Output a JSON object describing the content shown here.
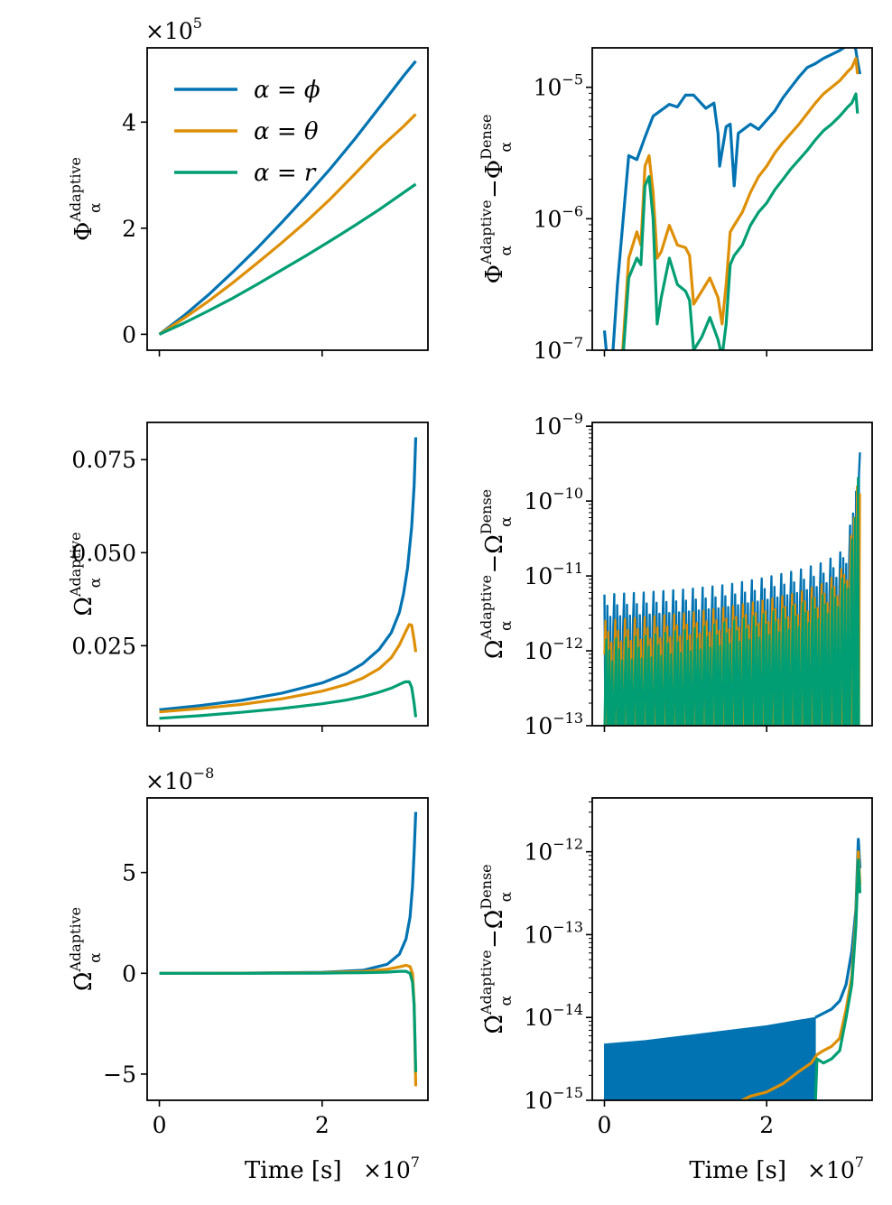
{
  "colors": {
    "phi": "#0173b2",
    "theta": "#de8f05",
    "r": "#029e73",
    "axis": "#000000"
  },
  "chart_data": [
    {
      "id": "phase",
      "type": "line",
      "ylabel": {
        "base": "Φ",
        "sup": "Adaptive",
        "sub": "α"
      },
      "xlim": [
        -0.15,
        3.3
      ],
      "ylim": [
        -0.3,
        5.4
      ],
      "y_scale_factor": "×10",
      "y_scale_exp": "5",
      "yticks": [
        {
          "v": 0,
          "label": "0"
        },
        {
          "v": 2,
          "label": "2"
        },
        {
          "v": 4,
          "label": "4"
        }
      ],
      "xticks": [
        0,
        2
      ],
      "legend": {
        "placement": "top-left",
        "entries": [
          "α = ϕ",
          "α = θ",
          "α = r"
        ]
      },
      "series": [
        {
          "name": "α = ϕ",
          "color_key": "phi",
          "x": [
            0,
            0.3,
            0.6,
            0.9,
            1.2,
            1.5,
            1.8,
            2.1,
            2.4,
            2.7,
            3.0,
            3.15
          ],
          "y": [
            0,
            0.35,
            0.74,
            1.17,
            1.62,
            2.1,
            2.6,
            3.12,
            3.68,
            4.27,
            4.87,
            5.15
          ]
        },
        {
          "name": "α = θ",
          "color_key": "theta",
          "x": [
            0,
            0.3,
            0.6,
            0.9,
            1.2,
            1.5,
            1.8,
            2.1,
            2.4,
            2.7,
            3.0,
            3.15
          ],
          "y": [
            0,
            0.3,
            0.62,
            0.97,
            1.34,
            1.72,
            2.12,
            2.55,
            3.02,
            3.5,
            3.92,
            4.15
          ]
        },
        {
          "name": "α = r",
          "color_key": "r",
          "x": [
            0,
            0.3,
            0.6,
            0.9,
            1.2,
            1.5,
            1.8,
            2.1,
            2.4,
            2.7,
            3.0,
            3.15
          ],
          "y": [
            0,
            0.21,
            0.44,
            0.68,
            0.94,
            1.21,
            1.48,
            1.76,
            2.05,
            2.35,
            2.67,
            2.83
          ]
        }
      ]
    },
    {
      "id": "phase-diff",
      "type": "line",
      "log_y": true,
      "ylabel": {
        "base1": "Φ",
        "sup1": "Adaptive",
        "sub1": "α",
        "op": "−",
        "base2": "Φ",
        "sup2": "Dense",
        "sub2": "α"
      },
      "xlim": [
        -0.15,
        3.3
      ],
      "ylim_log10": [
        -7,
        -4.7
      ],
      "yticks": [
        {
          "e": -7,
          "label": "10",
          "exp": "−7"
        },
        {
          "e": -6,
          "label": "10",
          "exp": "−6"
        },
        {
          "e": -5,
          "label": "10",
          "exp": "−5"
        }
      ],
      "xticks": [
        0,
        2
      ],
      "series": [
        {
          "name": "α = ϕ",
          "color_key": "phi",
          "x": [
            0,
            0.03,
            0.1,
            0.16,
            0.3,
            0.4,
            0.5,
            0.6,
            0.8,
            0.9,
            1.0,
            1.1,
            1.25,
            1.35,
            1.4,
            1.42,
            1.5,
            1.55,
            1.6,
            1.65,
            1.8,
            1.9,
            2.0,
            2.1,
            2.2,
            2.3,
            2.4,
            2.5,
            2.6,
            2.7,
            2.8,
            2.9,
            3.0,
            3.05,
            3.1,
            3.12,
            3.15
          ],
          "y": [
            -6.85,
            -7.05,
            -7.05,
            -6.5,
            -5.52,
            -5.55,
            -5.38,
            -5.22,
            -5.13,
            -5.15,
            -5.06,
            -5.06,
            -5.16,
            -5.12,
            -5.35,
            -5.6,
            -5.3,
            -5.28,
            -5.75,
            -5.35,
            -5.28,
            -5.32,
            -5.25,
            -5.18,
            -5.08,
            -5.0,
            -4.92,
            -4.85,
            -4.82,
            -4.78,
            -4.75,
            -4.72,
            -4.68,
            -4.6,
            -4.72,
            -4.8,
            -4.9
          ]
        },
        {
          "name": "α = θ",
          "color_key": "theta",
          "x": [
            0.22,
            0.3,
            0.4,
            0.45,
            0.5,
            0.55,
            0.6,
            0.65,
            0.7,
            0.8,
            0.9,
            1.0,
            1.05,
            1.1,
            1.2,
            1.3,
            1.4,
            1.45,
            1.5,
            1.55,
            1.6,
            1.7,
            1.8,
            1.9,
            2.0,
            2.1,
            2.2,
            2.3,
            2.4,
            2.5,
            2.6,
            2.7,
            2.8,
            2.9,
            3.0,
            3.05,
            3.1,
            3.12
          ],
          "y": [
            -7.05,
            -6.3,
            -6.1,
            -6.2,
            -5.6,
            -5.52,
            -5.8,
            -6.3,
            -6.25,
            -6.05,
            -6.2,
            -6.22,
            -6.28,
            -6.65,
            -6.55,
            -6.45,
            -6.6,
            -6.8,
            -6.5,
            -6.1,
            -6.05,
            -5.95,
            -5.8,
            -5.68,
            -5.6,
            -5.5,
            -5.42,
            -5.35,
            -5.28,
            -5.2,
            -5.12,
            -5.05,
            -5.0,
            -4.95,
            -4.88,
            -4.85,
            -4.78,
            -4.9
          ]
        },
        {
          "name": "α = r",
          "color_key": "r",
          "x": [
            0.23,
            0.3,
            0.4,
            0.45,
            0.5,
            0.55,
            0.6,
            0.65,
            0.7,
            0.8,
            0.9,
            1.0,
            1.05,
            1.1,
            1.2,
            1.3,
            1.4,
            1.45,
            1.5,
            1.55,
            1.6,
            1.7,
            1.8,
            1.9,
            2.0,
            2.1,
            2.2,
            2.3,
            2.4,
            2.5,
            2.6,
            2.7,
            2.8,
            2.9,
            3.0,
            3.05,
            3.1,
            3.12
          ],
          "y": [
            -7.05,
            -6.45,
            -6.3,
            -6.35,
            -5.75,
            -5.68,
            -6.0,
            -6.8,
            -6.6,
            -6.3,
            -6.5,
            -6.55,
            -6.62,
            -7.0,
            -6.9,
            -6.75,
            -6.92,
            -7.05,
            -6.8,
            -6.35,
            -6.28,
            -6.2,
            -6.05,
            -5.95,
            -5.88,
            -5.78,
            -5.7,
            -5.62,
            -5.55,
            -5.48,
            -5.4,
            -5.33,
            -5.28,
            -5.22,
            -5.15,
            -5.12,
            -5.05,
            -5.2
          ]
        }
      ]
    },
    {
      "id": "frequency",
      "type": "line",
      "ylabel": {
        "base": "Ω",
        "sup": "Adaptive",
        "sub": "α"
      },
      "xlim": [
        -0.15,
        3.3
      ],
      "ylim": [
        0.0035,
        0.085
      ],
      "yticks": [
        {
          "v": 0.025,
          "label": "0.025"
        },
        {
          "v": 0.05,
          "label": "0.050"
        },
        {
          "v": 0.075,
          "label": "0.075"
        }
      ],
      "xticks": [
        0,
        2
      ],
      "series": [
        {
          "name": "α = ϕ",
          "color_key": "phi",
          "x": [
            0,
            0.5,
            1.0,
            1.5,
            2.0,
            2.3,
            2.5,
            2.7,
            2.85,
            2.95,
            3.0,
            3.05,
            3.1,
            3.13,
            3.15
          ],
          "y": [
            0.0078,
            0.0089,
            0.0103,
            0.0122,
            0.015,
            0.0176,
            0.0202,
            0.024,
            0.0285,
            0.034,
            0.039,
            0.046,
            0.057,
            0.068,
            0.081
          ]
        },
        {
          "name": "α = θ",
          "color_key": "theta",
          "x": [
            0,
            0.5,
            1.0,
            1.5,
            2.0,
            2.3,
            2.5,
            2.7,
            2.85,
            2.95,
            3.02,
            3.07,
            3.1,
            3.13,
            3.15
          ],
          "y": [
            0.0072,
            0.0081,
            0.0092,
            0.0107,
            0.0128,
            0.0146,
            0.0163,
            0.0188,
            0.0218,
            0.0252,
            0.0285,
            0.0307,
            0.0305,
            0.0265,
            0.0233
          ]
        },
        {
          "name": "α = r",
          "color_key": "r",
          "x": [
            0,
            0.5,
            1.0,
            1.5,
            2.0,
            2.3,
            2.5,
            2.7,
            2.85,
            2.95,
            3.02,
            3.07,
            3.1,
            3.13,
            3.15
          ],
          "y": [
            0.0055,
            0.0062,
            0.0071,
            0.0081,
            0.0094,
            0.0104,
            0.0113,
            0.0125,
            0.0136,
            0.0146,
            0.0153,
            0.0153,
            0.0138,
            0.0095,
            0.0058
          ]
        }
      ]
    },
    {
      "id": "frequency-diff",
      "type": "line",
      "log_y": true,
      "ylabel": {
        "base1": "Ω",
        "sup1": "Adaptive",
        "sub1": "α",
        "op": "−",
        "base2": "Ω",
        "sup2": "Dense",
        "sub2": "α"
      },
      "xlim": [
        -0.15,
        3.3
      ],
      "ylim_log10": [
        -13,
        -8.95
      ],
      "yticks": [
        {
          "e": -13,
          "label": "10",
          "exp": "−13"
        },
        {
          "e": -12,
          "label": "10",
          "exp": "−12"
        },
        {
          "e": -11,
          "label": "10",
          "exp": "−11"
        },
        {
          "e": -10,
          "label": "10",
          "exp": "−10"
        },
        {
          "e": -9,
          "label": "10",
          "exp": "−9"
        }
      ],
      "xticks": [
        0,
        2
      ],
      "series": [
        {
          "name": "α = ϕ",
          "color_key": "phi",
          "envelope_x": [
            0,
            0.5,
            1.0,
            1.5,
            2.0,
            2.4,
            2.7,
            2.9,
            3.0,
            3.05,
            3.1,
            3.13,
            3.15
          ],
          "envelope_y": [
            -11.25,
            -11.22,
            -11.18,
            -11.12,
            -11.02,
            -10.92,
            -10.82,
            -10.7,
            -10.5,
            -10.2,
            -9.6,
            -9.1,
            -9.35
          ]
        },
        {
          "name": "α = θ",
          "color_key": "theta",
          "envelope_x": [
            0,
            0.5,
            1.0,
            1.5,
            2.0,
            2.4,
            2.7,
            2.9,
            3.0,
            3.05,
            3.1,
            3.13,
            3.15
          ],
          "envelope_y": [
            -11.6,
            -11.55,
            -11.5,
            -11.42,
            -11.32,
            -11.22,
            -11.1,
            -10.95,
            -10.75,
            -10.4,
            -9.8,
            -9.15,
            -9.45
          ]
        },
        {
          "name": "α = r",
          "color_key": "r",
          "envelope_x": [
            0,
            0.5,
            1.0,
            1.5,
            2.0,
            2.4,
            2.7,
            2.9,
            3.0,
            3.05,
            3.1,
            3.13,
            3.15
          ],
          "envelope_y": [
            -11.85,
            -11.8,
            -11.72,
            -11.62,
            -11.5,
            -11.38,
            -11.25,
            -11.1,
            -10.9,
            -10.55,
            -9.95,
            -9.3,
            -9.6
          ]
        }
      ]
    },
    {
      "id": "freq-derivative",
      "type": "line",
      "ylabel": {
        "base": "Ω̇",
        "sup": "Adaptive",
        "sub": "α"
      },
      "xlim": [
        -0.15,
        3.3
      ],
      "ylim": [
        -6.3,
        8.7
      ],
      "y_scale_factor": "×10",
      "y_scale_exp": "−8",
      "xlabel": "Time [s]",
      "x_scale_factor": "×10",
      "x_scale_exp": "7",
      "yticks": [
        {
          "v": -5,
          "label": "−5"
        },
        {
          "v": 0,
          "label": "0"
        },
        {
          "v": 5,
          "label": "5"
        }
      ],
      "xticks": [
        {
          "v": 0,
          "label": "0"
        },
        {
          "v": 2,
          "label": "2"
        }
      ],
      "series": [
        {
          "name": "α = ϕ",
          "color_key": "phi",
          "x": [
            0,
            1.0,
            2.0,
            2.5,
            2.8,
            2.95,
            3.03,
            3.08,
            3.11,
            3.13,
            3.15
          ],
          "y": [
            0,
            0.01,
            0.05,
            0.15,
            0.45,
            0.95,
            1.7,
            2.8,
            4.3,
            6.0,
            8.0
          ]
        },
        {
          "name": "α = θ",
          "color_key": "theta",
          "x": [
            0,
            1.0,
            2.0,
            2.5,
            2.8,
            2.95,
            3.03,
            3.08,
            3.11,
            3.13,
            3.14,
            3.15
          ],
          "y": [
            0,
            0.005,
            0.03,
            0.09,
            0.2,
            0.32,
            0.4,
            0.33,
            0.0,
            -1.5,
            -3.5,
            -5.6
          ]
        },
        {
          "name": "α = r",
          "color_key": "r",
          "x": [
            0,
            1.0,
            2.0,
            2.5,
            2.8,
            2.95,
            3.03,
            3.08,
            3.11,
            3.13,
            3.14,
            3.15
          ],
          "y": [
            0,
            0.002,
            0.01,
            0.03,
            0.06,
            0.1,
            0.1,
            0.0,
            -0.45,
            -1.6,
            -3.2,
            -4.9
          ]
        }
      ]
    },
    {
      "id": "freq-derivative-diff",
      "type": "line",
      "log_y": true,
      "ylabel": {
        "base1": "Ω̇",
        "sup1": "Adaptive",
        "sub1": "α",
        "op": "−",
        "base2": "Ω̇",
        "sup2": "Dense",
        "sub2": "α"
      },
      "xlim": [
        -0.15,
        3.3
      ],
      "ylim_log10": [
        -15,
        -11.35
      ],
      "yticks": [
        {
          "e": -15,
          "label": "10",
          "exp": "−15"
        },
        {
          "e": -14,
          "label": "10",
          "exp": "−14"
        },
        {
          "e": -13,
          "label": "10",
          "exp": "−13"
        },
        {
          "e": -12,
          "label": "10",
          "exp": "−12"
        }
      ],
      "xlabel": "Time [s]",
      "x_scale_factor": "×10",
      "x_scale_exp": "7",
      "xticks": [
        {
          "v": 0,
          "label": "0"
        },
        {
          "v": 2,
          "label": "2"
        }
      ],
      "series": [
        {
          "name": "α = ϕ",
          "color_key": "phi",
          "band_x": [
            0,
            0.5,
            1.0,
            1.5,
            2.0,
            2.3,
            2.6
          ],
          "band_top": [
            -14.32,
            -14.28,
            -14.22,
            -14.16,
            -14.1,
            -14.05,
            -14.0
          ],
          "band_bottom": -15.0,
          "spike_x": [
            2.6,
            2.8,
            2.9,
            2.98,
            3.05,
            3.1,
            3.13,
            3.15
          ],
          "spike_y": [
            -14.0,
            -13.9,
            -13.8,
            -13.6,
            -13.2,
            -12.7,
            -11.85,
            -12.2
          ]
        },
        {
          "name": "α = θ",
          "color_key": "theta",
          "x": [
            1.6,
            1.8,
            2.0,
            2.2,
            2.4,
            2.55,
            2.62,
            2.7,
            2.8,
            2.9,
            2.98,
            3.05,
            3.1,
            3.13,
            3.15
          ],
          "y": [
            -15.05,
            -14.95,
            -14.9,
            -14.8,
            -14.65,
            -14.55,
            -14.45,
            -14.4,
            -14.35,
            -14.25,
            -13.9,
            -13.5,
            -12.8,
            -12.0,
            -12.4
          ]
        },
        {
          "name": "α = r",
          "color_key": "r",
          "x": [
            2.6,
            2.62,
            2.7,
            2.8,
            2.9,
            2.98,
            3.05,
            3.1,
            3.13,
            3.15
          ],
          "y": [
            -15.05,
            -14.5,
            -14.55,
            -14.5,
            -14.4,
            -14.0,
            -13.6,
            -12.9,
            -12.1,
            -12.5
          ]
        }
      ]
    }
  ]
}
